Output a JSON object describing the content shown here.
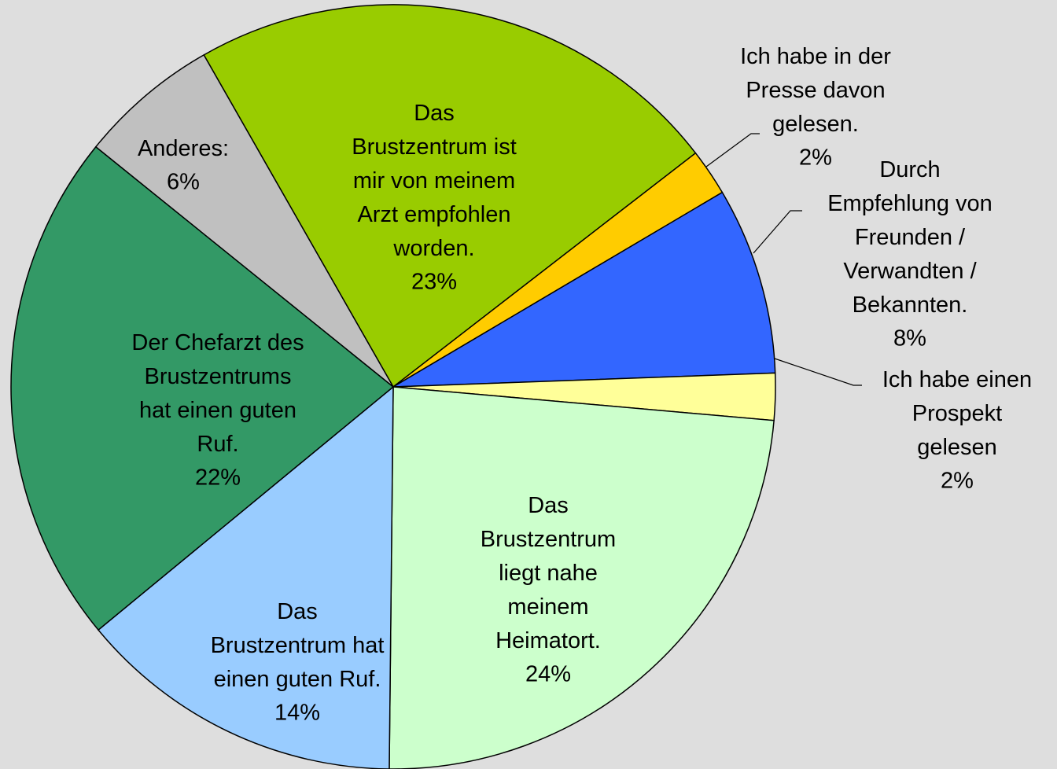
{
  "chart_data": {
    "type": "pie",
    "categories": [
      "Das\nBrustzentrum ist\nmir von meinem\nArzt empfohlen\nworden.",
      "Ich habe in der\nPresse davon\ngelesen.",
      "Durch\nEmpfehlung von\nFreunden /\nVerwandten /\nBekannten.",
      "Ich habe einen\nProspekt\ngelesen",
      "Das\nBrustzentrum\nliegt nahe\nmeinem\nHeimatort.",
      "Das\nBrustzentrum hat\neinen guten Ruf.",
      "Der Chefarzt des\nBrustzentrums\nhat einen guten\nRuf.",
      "Anderes:"
    ],
    "values": [
      23,
      2,
      8,
      2,
      24,
      14,
      22,
      6
    ],
    "value_labels": [
      "23%",
      "2%",
      "8%",
      "2%",
      "24%",
      "14%",
      "22%",
      "6%"
    ],
    "colors": [
      "#99cc00",
      "#ffcc00",
      "#3366ff",
      "#ffff99",
      "#ccffcc",
      "#99ccff",
      "#339966",
      "#c0c0c0"
    ]
  }
}
